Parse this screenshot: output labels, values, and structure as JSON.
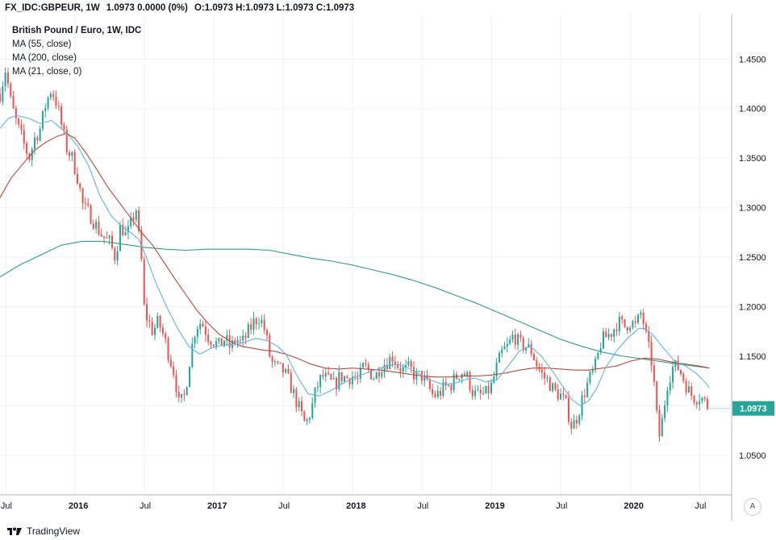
{
  "header": {
    "symbol": "FX_IDC:GBPEUR, 1W",
    "last_change": "1.0973 0.0000 (0%)",
    "ohlc": "O:1.0973 H:1.0973 L:1.0973 C:1.0973"
  },
  "legend": {
    "title": "British Pound / Euro, 1W, IDC",
    "ma55": "MA (55, close)",
    "ma200": "MA (200, close)",
    "ma21": "MA (21, close, 0)"
  },
  "toolbar": {
    "auto_scale": "A"
  },
  "footer": {
    "brand": "TradingView"
  },
  "colors": {
    "up": "#26a69a",
    "down": "#ef5350",
    "ma55": "#b84a3e",
    "ma200": "#2e9e8a",
    "ma21": "#5eb4e6",
    "last_price_bg": "#26a69a",
    "grid": "#eef0f3",
    "axis": "#b2b5be"
  },
  "chart_data": {
    "type": "candlestick",
    "title": "British Pound / Euro, 1W, IDC",
    "last_price": "1.0973",
    "y_ticks": [
      "1.0500",
      "1.1000",
      "1.1500",
      "1.2000",
      "1.2500",
      "1.3000",
      "1.3500",
      "1.4000",
      "1.4500"
    ],
    "ylim": [
      1.01,
      1.495
    ],
    "x_ticks": [
      {
        "label": "Jul",
        "t": 2015.5,
        "bold": false
      },
      {
        "label": "2016",
        "t": 2016.0,
        "bold": true
      },
      {
        "label": "Jul",
        "t": 2016.5,
        "bold": false
      },
      {
        "label": "2017",
        "t": 2017.0,
        "bold": true
      },
      {
        "label": "Jul",
        "t": 2017.5,
        "bold": false
      },
      {
        "label": "2018",
        "t": 2018.0,
        "bold": true
      },
      {
        "label": "Jul",
        "t": 2018.5,
        "bold": false
      },
      {
        "label": "2019",
        "t": 2019.0,
        "bold": true
      },
      {
        "label": "Jul",
        "t": 2019.5,
        "bold": false
      },
      {
        "label": "2020",
        "t": 2020.0,
        "bold": true
      },
      {
        "label": "Jul",
        "t": 2020.5,
        "bold": false
      }
    ],
    "xlim": [
      2015.46,
      2020.73
    ],
    "close_path": [
      [
        2015.46,
        1.415
      ],
      [
        2015.5,
        1.44
      ],
      [
        2015.54,
        1.405
      ],
      [
        2015.58,
        1.385
      ],
      [
        2015.63,
        1.365
      ],
      [
        2015.67,
        1.35
      ],
      [
        2015.71,
        1.37
      ],
      [
        2015.75,
        1.38
      ],
      [
        2015.79,
        1.405
      ],
      [
        2015.83,
        1.42
      ],
      [
        2015.87,
        1.405
      ],
      [
        2015.9,
        1.385
      ],
      [
        2015.94,
        1.36
      ],
      [
        2015.98,
        1.35
      ],
      [
        2016.02,
        1.33
      ],
      [
        2016.06,
        1.3
      ],
      [
        2016.1,
        1.295
      ],
      [
        2016.14,
        1.285
      ],
      [
        2016.18,
        1.275
      ],
      [
        2016.22,
        1.268
      ],
      [
        2016.25,
        1.265
      ],
      [
        2016.29,
        1.25
      ],
      [
        2016.33,
        1.283
      ],
      [
        2016.37,
        1.27
      ],
      [
        2016.4,
        1.282
      ],
      [
        2016.44,
        1.3
      ],
      [
        2016.46,
        1.27
      ],
      [
        2016.48,
        1.245
      ],
      [
        2016.5,
        1.195
      ],
      [
        2016.53,
        1.185
      ],
      [
        2016.56,
        1.175
      ],
      [
        2016.6,
        1.185
      ],
      [
        2016.64,
        1.17
      ],
      [
        2016.68,
        1.15
      ],
      [
        2016.72,
        1.13
      ],
      [
        2016.75,
        1.1
      ],
      [
        2016.79,
        1.11
      ],
      [
        2016.83,
        1.15
      ],
      [
        2016.87,
        1.18
      ],
      [
        2016.91,
        1.185
      ],
      [
        2016.96,
        1.17
      ],
      [
        2017.0,
        1.165
      ],
      [
        2017.04,
        1.16
      ],
      [
        2017.08,
        1.168
      ],
      [
        2017.12,
        1.158
      ],
      [
        2017.16,
        1.168
      ],
      [
        2017.2,
        1.162
      ],
      [
        2017.25,
        1.175
      ],
      [
        2017.29,
        1.185
      ],
      [
        2017.33,
        1.19
      ],
      [
        2017.37,
        1.175
      ],
      [
        2017.41,
        1.145
      ],
      [
        2017.45,
        1.138
      ],
      [
        2017.5,
        1.135
      ],
      [
        2017.54,
        1.125
      ],
      [
        2017.58,
        1.11
      ],
      [
        2017.62,
        1.095
      ],
      [
        2017.66,
        1.08
      ],
      [
        2017.7,
        1.095
      ],
      [
        2017.74,
        1.118
      ],
      [
        2017.78,
        1.13
      ],
      [
        2017.83,
        1.125
      ],
      [
        2017.87,
        1.12
      ],
      [
        2017.91,
        1.13
      ],
      [
        2017.96,
        1.128
      ],
      [
        2018.0,
        1.13
      ],
      [
        2018.04,
        1.125
      ],
      [
        2018.08,
        1.14
      ],
      [
        2018.12,
        1.135
      ],
      [
        2018.16,
        1.128
      ],
      [
        2018.2,
        1.14
      ],
      [
        2018.25,
        1.145
      ],
      [
        2018.29,
        1.15
      ],
      [
        2018.33,
        1.14
      ],
      [
        2018.37,
        1.135
      ],
      [
        2018.41,
        1.138
      ],
      [
        2018.45,
        1.13
      ],
      [
        2018.5,
        1.13
      ],
      [
        2018.54,
        1.12
      ],
      [
        2018.58,
        1.11
      ],
      [
        2018.62,
        1.112
      ],
      [
        2018.66,
        1.118
      ],
      [
        2018.7,
        1.12
      ],
      [
        2018.74,
        1.128
      ],
      [
        2018.78,
        1.135
      ],
      [
        2018.83,
        1.128
      ],
      [
        2018.87,
        1.112
      ],
      [
        2018.91,
        1.11
      ],
      [
        2018.96,
        1.112
      ],
      [
        2019.0,
        1.12
      ],
      [
        2019.04,
        1.14
      ],
      [
        2019.08,
        1.155
      ],
      [
        2019.12,
        1.16
      ],
      [
        2019.16,
        1.172
      ],
      [
        2019.2,
        1.162
      ],
      [
        2019.25,
        1.16
      ],
      [
        2019.29,
        1.155
      ],
      [
        2019.33,
        1.14
      ],
      [
        2019.37,
        1.13
      ],
      [
        2019.41,
        1.125
      ],
      [
        2019.45,
        1.115
      ],
      [
        2019.5,
        1.11
      ],
      [
        2019.54,
        1.1
      ],
      [
        2019.58,
        1.078
      ],
      [
        2019.62,
        1.09
      ],
      [
        2019.66,
        1.11
      ],
      [
        2019.7,
        1.125
      ],
      [
        2019.75,
        1.14
      ],
      [
        2019.79,
        1.165
      ],
      [
        2019.83,
        1.17
      ],
      [
        2019.87,
        1.175
      ],
      [
        2019.91,
        1.185
      ],
      [
        2019.96,
        1.18
      ],
      [
        2020.0,
        1.185
      ],
      [
        2020.04,
        1.18
      ],
      [
        2020.08,
        1.195
      ],
      [
        2020.12,
        1.165
      ],
      [
        2020.16,
        1.14
      ],
      [
        2020.19,
        1.09
      ],
      [
        2020.21,
        1.07
      ],
      [
        2020.23,
        1.085
      ],
      [
        2020.27,
        1.125
      ],
      [
        2020.31,
        1.14
      ],
      [
        2020.35,
        1.138
      ],
      [
        2020.39,
        1.125
      ],
      [
        2020.43,
        1.112
      ],
      [
        2020.47,
        1.108
      ],
      [
        2020.5,
        1.11
      ],
      [
        2020.53,
        1.105
      ],
      [
        2020.57,
        1.097
      ]
    ],
    "ma21_path": [
      [
        2015.46,
        1.38
      ],
      [
        2015.52,
        1.39
      ],
      [
        2015.58,
        1.393
      ],
      [
        2015.67,
        1.39
      ],
      [
        2015.75,
        1.385
      ],
      [
        2015.83,
        1.388
      ],
      [
        2015.9,
        1.38
      ],
      [
        2015.96,
        1.372
      ],
      [
        2016.02,
        1.362
      ],
      [
        2016.1,
        1.342
      ],
      [
        2016.18,
        1.312
      ],
      [
        2016.26,
        1.292
      ],
      [
        2016.33,
        1.282
      ],
      [
        2016.4,
        1.275
      ],
      [
        2016.46,
        1.268
      ],
      [
        2016.52,
        1.248
      ],
      [
        2016.58,
        1.225
      ],
      [
        2016.66,
        1.2
      ],
      [
        2016.74,
        1.178
      ],
      [
        2016.82,
        1.16
      ],
      [
        2016.9,
        1.152
      ],
      [
        2016.98,
        1.158
      ],
      [
        2017.06,
        1.161
      ],
      [
        2017.14,
        1.162
      ],
      [
        2017.22,
        1.164
      ],
      [
        2017.3,
        1.168
      ],
      [
        2017.38,
        1.166
      ],
      [
        2017.46,
        1.16
      ],
      [
        2017.52,
        1.152
      ],
      [
        2017.6,
        1.13
      ],
      [
        2017.68,
        1.112
      ],
      [
        2017.76,
        1.11
      ],
      [
        2017.84,
        1.115
      ],
      [
        2017.92,
        1.122
      ],
      [
        2018.0,
        1.128
      ],
      [
        2018.08,
        1.132
      ],
      [
        2018.16,
        1.136
      ],
      [
        2018.24,
        1.14
      ],
      [
        2018.32,
        1.142
      ],
      [
        2018.4,
        1.138
      ],
      [
        2018.48,
        1.132
      ],
      [
        2018.56,
        1.126
      ],
      [
        2018.64,
        1.122
      ],
      [
        2018.72,
        1.122
      ],
      [
        2018.8,
        1.126
      ],
      [
        2018.88,
        1.128
      ],
      [
        2018.96,
        1.124
      ],
      [
        2019.04,
        1.126
      ],
      [
        2019.12,
        1.14
      ],
      [
        2019.2,
        1.155
      ],
      [
        2019.28,
        1.16
      ],
      [
        2019.36,
        1.15
      ],
      [
        2019.44,
        1.135
      ],
      [
        2019.52,
        1.118
      ],
      [
        2019.58,
        1.106
      ],
      [
        2019.64,
        1.1
      ],
      [
        2019.7,
        1.105
      ],
      [
        2019.76,
        1.118
      ],
      [
        2019.82,
        1.138
      ],
      [
        2019.9,
        1.155
      ],
      [
        2019.98,
        1.168
      ],
      [
        2020.06,
        1.178
      ],
      [
        2020.1,
        1.178
      ],
      [
        2020.16,
        1.172
      ],
      [
        2020.24,
        1.158
      ],
      [
        2020.32,
        1.145
      ],
      [
        2020.4,
        1.14
      ],
      [
        2020.48,
        1.132
      ],
      [
        2020.53,
        1.125
      ],
      [
        2020.57,
        1.118
      ]
    ],
    "ma55_path": [
      [
        2015.46,
        1.31
      ],
      [
        2015.54,
        1.33
      ],
      [
        2015.63,
        1.345
      ],
      [
        2015.71,
        1.358
      ],
      [
        2015.79,
        1.366
      ],
      [
        2015.87,
        1.372
      ],
      [
        2015.94,
        1.375
      ],
      [
        2016.0,
        1.37
      ],
      [
        2016.08,
        1.355
      ],
      [
        2016.16,
        1.338
      ],
      [
        2016.24,
        1.32
      ],
      [
        2016.32,
        1.305
      ],
      [
        2016.4,
        1.29
      ],
      [
        2016.48,
        1.275
      ],
      [
        2016.56,
        1.262
      ],
      [
        2016.64,
        1.245
      ],
      [
        2016.72,
        1.228
      ],
      [
        2016.8,
        1.212
      ],
      [
        2016.88,
        1.196
      ],
      [
        2016.96,
        1.183
      ],
      [
        2017.04,
        1.172
      ],
      [
        2017.12,
        1.165
      ],
      [
        2017.2,
        1.16
      ],
      [
        2017.28,
        1.158
      ],
      [
        2017.36,
        1.156
      ],
      [
        2017.44,
        1.155
      ],
      [
        2017.52,
        1.152
      ],
      [
        2017.6,
        1.148
      ],
      [
        2017.7,
        1.142
      ],
      [
        2017.8,
        1.138
      ],
      [
        2017.9,
        1.137
      ],
      [
        2018.0,
        1.138
      ],
      [
        2018.1,
        1.137
      ],
      [
        2018.2,
        1.136
      ],
      [
        2018.3,
        1.134
      ],
      [
        2018.4,
        1.132
      ],
      [
        2018.5,
        1.13
      ],
      [
        2018.6,
        1.129
      ],
      [
        2018.7,
        1.129
      ],
      [
        2018.8,
        1.13
      ],
      [
        2018.9,
        1.13
      ],
      [
        2019.0,
        1.131
      ],
      [
        2019.1,
        1.133
      ],
      [
        2019.2,
        1.136
      ],
      [
        2019.3,
        1.138
      ],
      [
        2019.4,
        1.138
      ],
      [
        2019.5,
        1.137
      ],
      [
        2019.6,
        1.136
      ],
      [
        2019.7,
        1.136
      ],
      [
        2019.8,
        1.138
      ],
      [
        2019.9,
        1.14
      ],
      [
        2020.0,
        1.145
      ],
      [
        2020.1,
        1.148
      ],
      [
        2020.2,
        1.147
      ],
      [
        2020.3,
        1.144
      ],
      [
        2020.4,
        1.142
      ],
      [
        2020.5,
        1.14
      ],
      [
        2020.57,
        1.138
      ]
    ],
    "ma200_path": [
      [
        2015.46,
        1.23
      ],
      [
        2015.6,
        1.242
      ],
      [
        2015.75,
        1.252
      ],
      [
        2015.9,
        1.262
      ],
      [
        2016.05,
        1.266
      ],
      [
        2016.2,
        1.266
      ],
      [
        2016.35,
        1.263
      ],
      [
        2016.5,
        1.26
      ],
      [
        2016.65,
        1.258
      ],
      [
        2016.8,
        1.257
      ],
      [
        2016.95,
        1.258
      ],
      [
        2017.1,
        1.258
      ],
      [
        2017.25,
        1.258
      ],
      [
        2017.4,
        1.257
      ],
      [
        2017.55,
        1.253
      ],
      [
        2017.7,
        1.249
      ],
      [
        2017.85,
        1.246
      ],
      [
        2018.0,
        1.242
      ],
      [
        2018.15,
        1.237
      ],
      [
        2018.3,
        1.232
      ],
      [
        2018.45,
        1.226
      ],
      [
        2018.6,
        1.219
      ],
      [
        2018.75,
        1.211
      ],
      [
        2018.9,
        1.203
      ],
      [
        2019.05,
        1.194
      ],
      [
        2019.2,
        1.185
      ],
      [
        2019.35,
        1.176
      ],
      [
        2019.5,
        1.167
      ],
      [
        2019.65,
        1.16
      ],
      [
        2019.8,
        1.154
      ],
      [
        2019.95,
        1.15
      ],
      [
        2020.1,
        1.147
      ],
      [
        2020.25,
        1.144
      ],
      [
        2020.4,
        1.141
      ],
      [
        2020.57,
        1.138
      ]
    ]
  }
}
